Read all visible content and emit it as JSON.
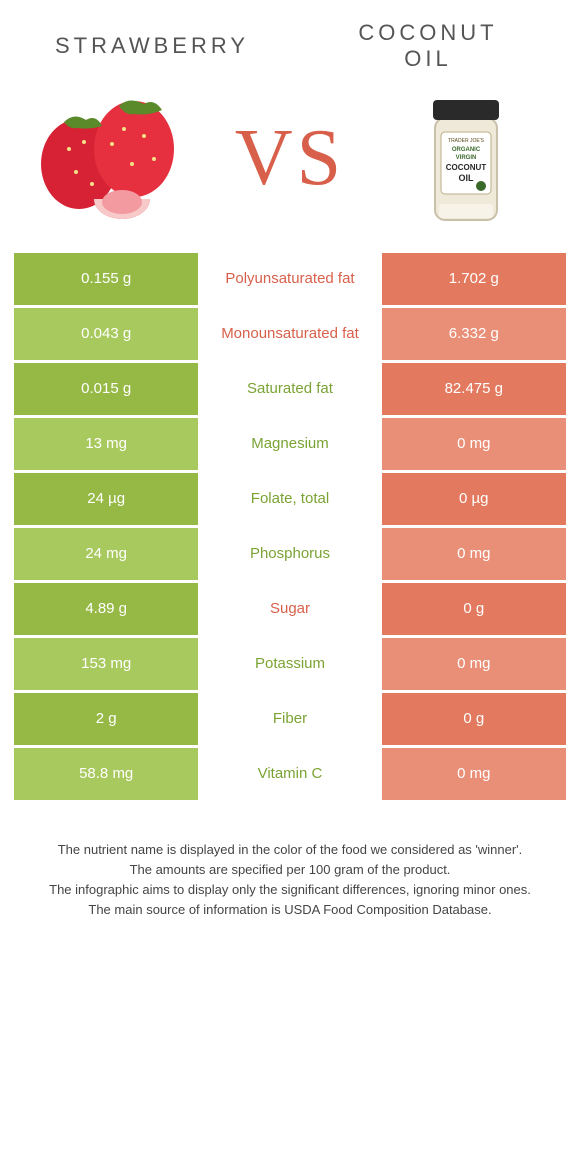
{
  "titles": {
    "left": "STRAWBERRY",
    "right_l1": "COCONUT",
    "right_l2": "OIL"
  },
  "vs": "VS",
  "colors": {
    "green": "#96b946",
    "greenLight": "#a8c95d",
    "orange": "#e37a5f",
    "orangeLight": "#ea8f77",
    "midGreen": "#7ba334",
    "midOrange": "#d8604b"
  },
  "rows": [
    {
      "left": "0.155 g",
      "mid": "Polyunsaturated fat",
      "right": "1.702 g",
      "winner": "orange"
    },
    {
      "left": "0.043 g",
      "mid": "Monounsaturated fat",
      "right": "6.332 g",
      "winner": "orange"
    },
    {
      "left": "0.015 g",
      "mid": "Saturated fat",
      "right": "82.475 g",
      "winner": "green"
    },
    {
      "left": "13 mg",
      "mid": "Magnesium",
      "right": "0 mg",
      "winner": "green"
    },
    {
      "left": "24 µg",
      "mid": "Folate, total",
      "right": "0 µg",
      "winner": "green"
    },
    {
      "left": "24 mg",
      "mid": "Phosphorus",
      "right": "0 mg",
      "winner": "green"
    },
    {
      "left": "4.89 g",
      "mid": "Sugar",
      "right": "0 g",
      "winner": "orange"
    },
    {
      "left": "153 mg",
      "mid": "Potassium",
      "right": "0 mg",
      "winner": "green"
    },
    {
      "left": "2 g",
      "mid": "Fiber",
      "right": "0 g",
      "winner": "green"
    },
    {
      "left": "58.8 mg",
      "mid": "Vitamin C",
      "right": "0 mg",
      "winner": "green"
    }
  ],
  "footnotes": [
    "The nutrient name is displayed in the color of the food we considered as 'winner'.",
    "The amounts are specified per 100 gram of the product.",
    "The infographic aims to display only the significant differences, ignoring minor ones.",
    "The main source of information is USDA Food Composition Database."
  ]
}
